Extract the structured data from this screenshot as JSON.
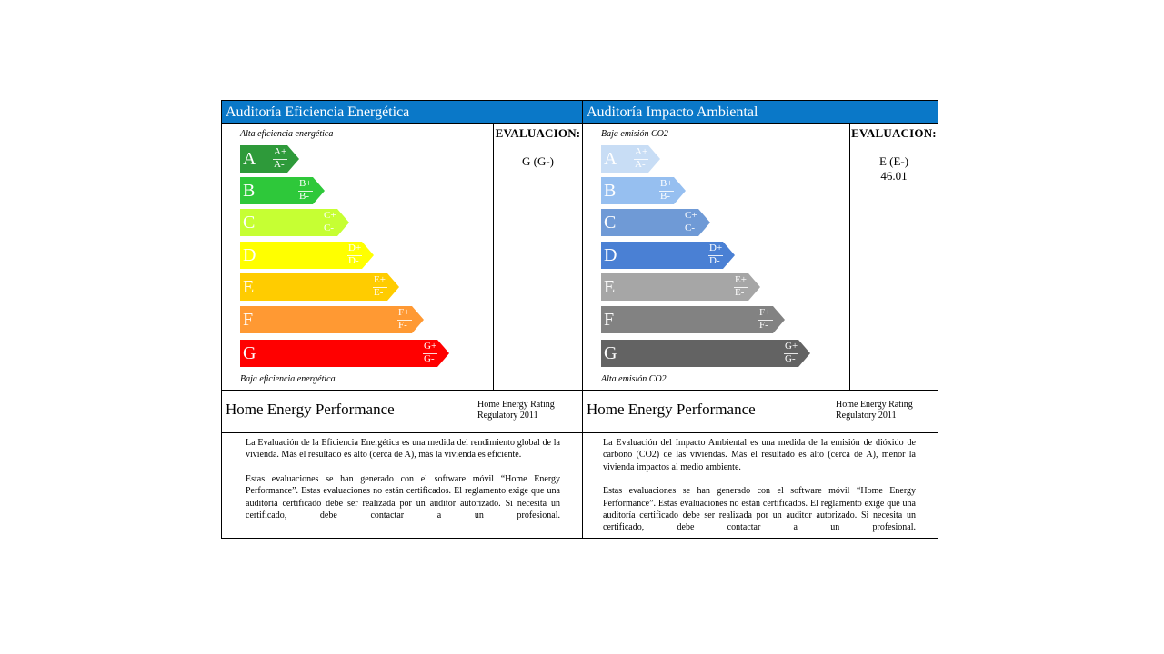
{
  "energy": {
    "header": "Auditoría Eficiencia Energética",
    "top_label": "Alta eficiencia energética",
    "bottom_label": "Baja eficiencia energética",
    "eval_title": "EVALUACION:",
    "eval_value": "G (G-)",
    "eval_extra": "",
    "brand": "Home Energy Performance",
    "rating_line1": "Home Energy Rating",
    "rating_line2": "Regulatory 2011",
    "desc_p1": "La Evaluación de la Eficiencia Energética es una medida del rendimiento global de la vivienda. Más el resultado es alto (cerca de A), más la vivienda es eficiente.",
    "desc_p2": "Estas evaluaciones se han generado con el software móvil “Home Energy Performance”. Estas evaluaciones no están certificados. El reglamento exige que una auditoría certificado debe ser realizada por un auditor autorizado. Si necesita un certificado, debe contactar a un profesional.",
    "bands": [
      {
        "letter": "A",
        "plus": "A+",
        "minus": "A-",
        "color": "#2e9a3a"
      },
      {
        "letter": "B",
        "plus": "B+",
        "minus": "B-",
        "color": "#2ec83a"
      },
      {
        "letter": "C",
        "plus": "C+",
        "minus": "C-",
        "color": "#c6ff33"
      },
      {
        "letter": "D",
        "plus": "D+",
        "minus": "D-",
        "color": "#ffff00"
      },
      {
        "letter": "E",
        "plus": "E+",
        "minus": "E-",
        "color": "#ffcc00"
      },
      {
        "letter": "F",
        "plus": "F+",
        "minus": "F-",
        "color": "#ff9933"
      },
      {
        "letter": "G",
        "plus": "G+",
        "minus": "G-",
        "color": "#ff0000"
      }
    ]
  },
  "environment": {
    "header": "Auditoría Impacto Ambiental",
    "top_label": "Baja emisión CO2",
    "bottom_label": "Alta emisión CO2",
    "eval_title": "EVALUACION:",
    "eval_value": "E (E-)",
    "eval_extra": "46.01",
    "brand": "Home Energy Performance",
    "rating_line1": "Home Energy Rating",
    "rating_line2": "Regulatory 2011",
    "desc_p1": "La Evaluación del Impacto Ambiental es una medida de la emisión de dióxido de carbono (CO2) de las viviendas. Más el resultado es alto (cerca de A), menor la vivienda impactos al medio ambiente.",
    "desc_p2": "Estas evaluaciones se han generado con el software móvil “Home Energy Performance”. Estas evaluaciones no están certificados. El reglamento exige que una auditoría certificado debe ser realizada por un auditor autorizado. Si necesita un certificado, debe contactar a un profesional.",
    "bands": [
      {
        "letter": "A",
        "plus": "A+",
        "minus": "A-",
        "color": "#c8ddf5"
      },
      {
        "letter": "B",
        "plus": "B+",
        "minus": "B-",
        "color": "#96bff0"
      },
      {
        "letter": "C",
        "plus": "C+",
        "minus": "C-",
        "color": "#6f9ad6"
      },
      {
        "letter": "D",
        "plus": "D+",
        "minus": "D-",
        "color": "#4a80d4"
      },
      {
        "letter": "E",
        "plus": "E+",
        "minus": "E-",
        "color": "#a6a6a6"
      },
      {
        "letter": "F",
        "plus": "F+",
        "minus": "F-",
        "color": "#828282"
      },
      {
        "letter": "G",
        "plus": "G+",
        "minus": "G-",
        "color": "#636363"
      }
    ]
  }
}
